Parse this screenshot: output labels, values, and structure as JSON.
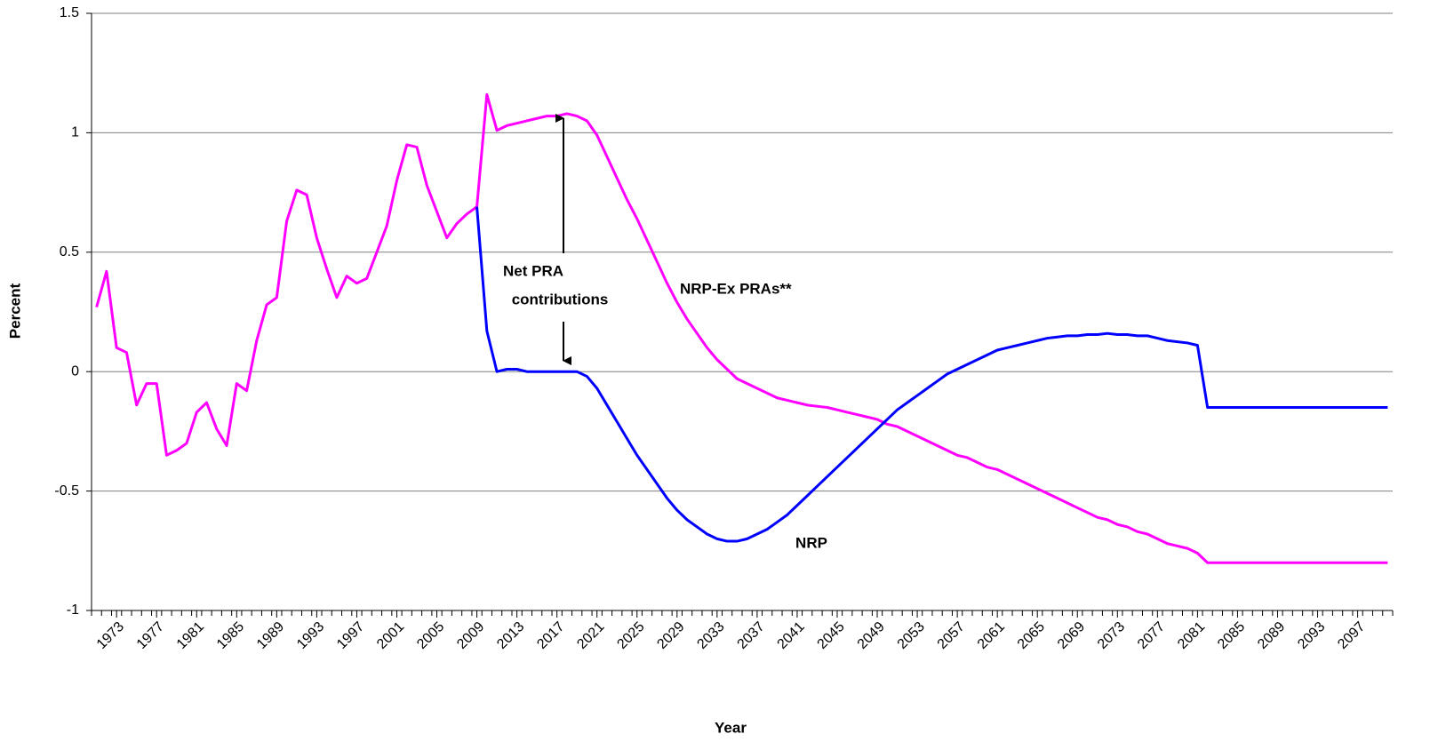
{
  "chart_data": {
    "type": "line",
    "x_label": "Year",
    "y_label": "Percent",
    "annotations": [
      "Net PRA",
      "contributions",
      "NRP-Ex PRAs**",
      "NRP"
    ],
    "x": [
      1971,
      1972,
      1973,
      1974,
      1975,
      1976,
      1977,
      1978,
      1979,
      1980,
      1981,
      1982,
      1983,
      1984,
      1985,
      1986,
      1987,
      1988,
      1989,
      1990,
      1991,
      1992,
      1993,
      1994,
      1995,
      1996,
      1997,
      1998,
      1999,
      2000,
      2001,
      2002,
      2003,
      2004,
      2005,
      2006,
      2007,
      2008,
      2009,
      2010,
      2011,
      2012,
      2013,
      2014,
      2015,
      2016,
      2017,
      2018,
      2019,
      2020,
      2021,
      2022,
      2023,
      2024,
      2025,
      2026,
      2027,
      2028,
      2029,
      2030,
      2031,
      2032,
      2033,
      2034,
      2035,
      2036,
      2037,
      2038,
      2039,
      2040,
      2041,
      2042,
      2043,
      2044,
      2045,
      2046,
      2047,
      2048,
      2049,
      2050,
      2051,
      2052,
      2053,
      2054,
      2055,
      2056,
      2057,
      2058,
      2059,
      2060,
      2061,
      2062,
      2063,
      2064,
      2065,
      2066,
      2067,
      2068,
      2069,
      2070,
      2071,
      2072,
      2073,
      2074,
      2075,
      2076,
      2077,
      2078,
      2079,
      2080,
      2081,
      2082,
      2083,
      2084,
      2085,
      2086,
      2087,
      2088,
      2089,
      2090,
      2091,
      2092,
      2093,
      2094,
      2095,
      2096,
      2097,
      2098,
      2099,
      2100
    ],
    "series": [
      {
        "name": "NRP-Ex PRAs**",
        "color": "#ff00ff",
        "values": [
          0.27,
          0.42,
          0.1,
          0.08,
          -0.14,
          -0.05,
          -0.05,
          -0.35,
          -0.33,
          -0.3,
          -0.17,
          -0.13,
          -0.24,
          -0.31,
          -0.05,
          -0.08,
          0.13,
          0.28,
          0.31,
          0.63,
          0.76,
          0.74,
          0.56,
          0.43,
          0.31,
          0.4,
          0.37,
          0.39,
          0.5,
          0.61,
          0.8,
          0.95,
          0.94,
          0.78,
          0.67,
          0.56,
          0.62,
          0.66,
          0.69,
          1.16,
          1.01,
          1.03,
          1.04,
          1.05,
          1.06,
          1.07,
          1.07,
          1.08,
          1.07,
          1.05,
          0.99,
          0.9,
          0.81,
          0.72,
          0.64,
          0.55,
          0.46,
          0.37,
          0.29,
          0.22,
          0.16,
          0.1,
          0.05,
          0.01,
          -0.03,
          -0.05,
          -0.07,
          -0.09,
          -0.11,
          -0.12,
          -0.13,
          -0.14,
          -0.145,
          -0.15,
          -0.16,
          -0.17,
          -0.18,
          -0.19,
          -0.2,
          -0.22,
          -0.23,
          -0.25,
          -0.27,
          -0.29,
          -0.31,
          -0.33,
          -0.35,
          -0.36,
          -0.38,
          -0.4,
          -0.41,
          -0.43,
          -0.45,
          -0.47,
          -0.49,
          -0.51,
          -0.53,
          -0.55,
          -0.57,
          -0.59,
          -0.61,
          -0.62,
          -0.64,
          -0.65,
          -0.67,
          -0.68,
          -0.7,
          -0.72,
          -0.73,
          -0.74,
          -0.76,
          -0.8,
          -0.8,
          -0.8,
          -0.8,
          -0.8,
          -0.8,
          -0.8,
          -0.8,
          -0.8,
          -0.8,
          -0.8,
          -0.8,
          -0.8,
          -0.8,
          -0.8,
          -0.8,
          -0.8,
          -0.8,
          -0.8
        ]
      },
      {
        "name": "NRP",
        "color": "#0000ff",
        "values": [
          null,
          null,
          null,
          null,
          null,
          null,
          null,
          null,
          null,
          null,
          null,
          null,
          null,
          null,
          null,
          null,
          null,
          null,
          null,
          null,
          null,
          null,
          null,
          null,
          null,
          null,
          null,
          null,
          null,
          null,
          null,
          null,
          null,
          null,
          null,
          null,
          null,
          null,
          0.69,
          0.17,
          0.0,
          0.01,
          0.01,
          0.0,
          0.0,
          0.0,
          0.0,
          0.0,
          0.0,
          -0.02,
          -0.07,
          -0.14,
          -0.21,
          -0.28,
          -0.35,
          -0.41,
          -0.47,
          -0.53,
          -0.58,
          -0.62,
          -0.65,
          -0.68,
          -0.7,
          -0.71,
          -0.71,
          -0.7,
          -0.68,
          -0.66,
          -0.63,
          -0.6,
          -0.56,
          -0.52,
          -0.48,
          -0.44,
          -0.4,
          -0.36,
          -0.32,
          -0.28,
          -0.24,
          -0.2,
          -0.16,
          -0.13,
          -0.1,
          -0.07,
          -0.04,
          -0.01,
          0.01,
          0.03,
          0.05,
          0.07,
          0.09,
          0.1,
          0.11,
          0.12,
          0.13,
          0.14,
          0.145,
          0.15,
          0.15,
          0.155,
          0.155,
          0.16,
          0.155,
          0.155,
          0.15,
          0.15,
          0.14,
          0.13,
          0.125,
          0.12,
          0.11,
          -0.15,
          -0.15,
          -0.15,
          -0.15,
          -0.15,
          -0.15,
          -0.15,
          -0.15,
          -0.15,
          -0.15,
          -0.15,
          -0.15,
          -0.15,
          -0.15,
          -0.15,
          -0.15,
          -0.15,
          -0.15,
          -0.15
        ]
      }
    ],
    "xlim": [
      1970.5,
      2100.5
    ],
    "xticks": [
      1973,
      1977,
      1981,
      1985,
      1989,
      1993,
      1997,
      2001,
      2005,
      2009,
      2013,
      2017,
      2021,
      2025,
      2029,
      2033,
      2037,
      2041,
      2045,
      2049,
      2053,
      2057,
      2061,
      2065,
      2069,
      2073,
      2077,
      2081,
      2085,
      2089,
      2093,
      2097
    ],
    "ylim": [
      -1,
      1.5
    ],
    "yticks": [
      -1,
      -0.5,
      0,
      0.5,
      1,
      1.5
    ],
    "grid": true
  }
}
